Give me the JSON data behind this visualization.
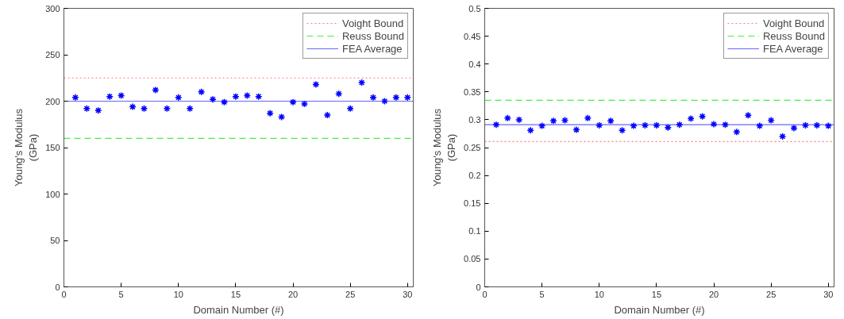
{
  "chart_data": [
    {
      "type": "scatter",
      "xlabel": "Domain Number (#)",
      "ylabel": "Young's Modulus\n(GPa)",
      "xlim": [
        0,
        30.5
      ],
      "ylim": [
        0,
        300
      ],
      "xticks": [
        0,
        5,
        10,
        15,
        20,
        25,
        30
      ],
      "yticks": [
        0,
        50,
        100,
        150,
        200,
        250,
        300
      ],
      "grid": false,
      "legend": "top right",
      "marker": "cross",
      "x": [
        1,
        2,
        3,
        4,
        5,
        6,
        7,
        8,
        9,
        10,
        11,
        12,
        13,
        14,
        15,
        16,
        17,
        18,
        19,
        20,
        21,
        22,
        23,
        24,
        25,
        26,
        27,
        28,
        29,
        30
      ],
      "series": [
        {
          "color": "#0000ff",
          "values": [
            204,
            192,
            190,
            205,
            206,
            194,
            192,
            212,
            192,
            204,
            192,
            210,
            202,
            199,
            205,
            206,
            205,
            187,
            183,
            199,
            197,
            218,
            185,
            208,
            192,
            220,
            204,
            200,
            204,
            204
          ]
        }
      ],
      "ref_lines": [
        {
          "axis": "y",
          "value": 225,
          "label": "Voight Bound",
          "color": "#ff8080",
          "line_style": "dotted"
        },
        {
          "axis": "y",
          "value": 160,
          "label": "Reuss Bound",
          "color": "#44ee44",
          "line_style": "dashed"
        },
        {
          "axis": "y",
          "value": 200,
          "label": "FEA Average",
          "color": "#6666ff",
          "line_style": "solid"
        }
      ]
    },
    {
      "type": "scatter",
      "xlabel": "Domain Number (#)",
      "ylabel": "Young's Modulus\n(GPa)",
      "xlim": [
        0,
        30.5
      ],
      "ylim": [
        0,
        0.5
      ],
      "xticks": [
        0,
        5,
        10,
        15,
        20,
        25,
        30
      ],
      "yticks": [
        0,
        0.05,
        0.1,
        0.15,
        0.2,
        0.25,
        0.3,
        0.35,
        0.4,
        0.45,
        0.5
      ],
      "grid": false,
      "legend": "top right",
      "marker": "cross",
      "x": [
        1,
        2,
        3,
        4,
        5,
        6,
        7,
        8,
        9,
        10,
        11,
        12,
        13,
        14,
        15,
        16,
        17,
        18,
        19,
        20,
        21,
        22,
        23,
        24,
        25,
        26,
        27,
        28,
        29,
        30
      ],
      "series": [
        {
          "color": "#0000ff",
          "values": [
            0.291,
            0.303,
            0.3,
            0.281,
            0.289,
            0.298,
            0.299,
            0.282,
            0.303,
            0.29,
            0.298,
            0.281,
            0.289,
            0.29,
            0.29,
            0.286,
            0.291,
            0.302,
            0.306,
            0.292,
            0.291,
            0.278,
            0.308,
            0.289,
            0.299,
            0.27,
            0.285,
            0.29,
            0.29,
            0.289
          ]
        }
      ],
      "ref_lines": [
        {
          "axis": "y",
          "value": 0.261,
          "label": "Voight Bound",
          "color": "#ff8080",
          "line_style": "dotted"
        },
        {
          "axis": "y",
          "value": 0.335,
          "label": "Reuss Bound",
          "color": "#44ee44",
          "line_style": "dashed"
        },
        {
          "axis": "y",
          "value": 0.291,
          "label": "FEA Average",
          "color": "#6666ff",
          "line_style": "solid"
        }
      ]
    }
  ]
}
